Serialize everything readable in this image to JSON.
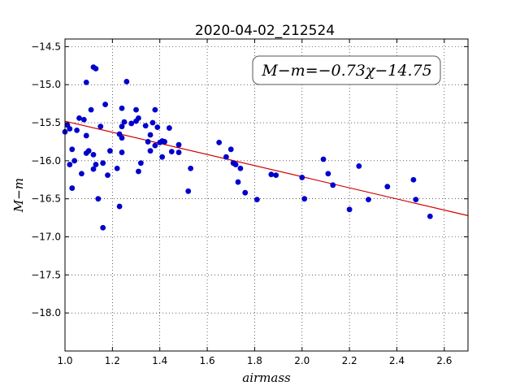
{
  "chart_data": {
    "type": "scatter",
    "title": "2020-04-02_212524",
    "xlabel": "airmass",
    "ylabel": "M−m",
    "annotation": "M−m=−0.73χ−14.75",
    "xlim": [
      1.0,
      2.7
    ],
    "ylim": [
      -18.5,
      -14.4
    ],
    "y_inverted": true,
    "grid": true,
    "xticks": [
      1.0,
      1.2,
      1.4,
      1.6,
      1.8,
      2.0,
      2.2,
      2.4,
      2.6
    ],
    "xtick_labels": [
      "1.0",
      "1.2",
      "1.4",
      "1.6",
      "1.8",
      "2.0",
      "2.2",
      "2.4",
      "2.6"
    ],
    "yticks": [
      -14.5,
      -15.0,
      -15.5,
      -16.0,
      -16.5,
      -17.0,
      -17.5,
      -18.0
    ],
    "ytick_labels": [
      "−14.5",
      "−15.0",
      "−15.5",
      "−16.0",
      "−16.5",
      "−17.0",
      "−17.5",
      "−18.0"
    ],
    "fit": {
      "slope": -0.73,
      "intercept": -14.75,
      "color": "#d00000"
    },
    "marker_color": "#0000cc",
    "points": [
      [
        1.0,
        -15.62
      ],
      [
        1.01,
        -15.53
      ],
      [
        1.02,
        -15.58
      ],
      [
        1.02,
        -16.05
      ],
      [
        1.03,
        -16.36
      ],
      [
        1.03,
        -15.85
      ],
      [
        1.04,
        -16.0
      ],
      [
        1.05,
        -15.6
      ],
      [
        1.06,
        -15.44
      ],
      [
        1.07,
        -16.17
      ],
      [
        1.08,
        -15.46
      ],
      [
        1.09,
        -15.9
      ],
      [
        1.09,
        -15.67
      ],
      [
        1.09,
        -14.97
      ],
      [
        1.1,
        -15.87
      ],
      [
        1.11,
        -15.33
      ],
      [
        1.12,
        -16.11
      ],
      [
        1.12,
        -15.92
      ],
      [
        1.12,
        -14.77
      ],
      [
        1.13,
        -14.79
      ],
      [
        1.13,
        -16.05
      ],
      [
        1.14,
        -16.5
      ],
      [
        1.15,
        -15.55
      ],
      [
        1.16,
        -16.88
      ],
      [
        1.16,
        -16.03
      ],
      [
        1.17,
        -15.26
      ],
      [
        1.18,
        -16.19
      ],
      [
        1.19,
        -15.87
      ],
      [
        1.22,
        -16.1
      ],
      [
        1.23,
        -15.65
      ],
      [
        1.23,
        -16.6
      ],
      [
        1.24,
        -15.7
      ],
      [
        1.24,
        -15.89
      ],
      [
        1.24,
        -15.55
      ],
      [
        1.24,
        -15.31
      ],
      [
        1.25,
        -15.49
      ],
      [
        1.26,
        -14.96
      ],
      [
        1.28,
        -15.51
      ],
      [
        1.3,
        -15.33
      ],
      [
        1.3,
        -15.48
      ],
      [
        1.31,
        -15.44
      ],
      [
        1.31,
        -16.14
      ],
      [
        1.32,
        -16.03
      ],
      [
        1.34,
        -15.54
      ],
      [
        1.35,
        -15.75
      ],
      [
        1.36,
        -15.87
      ],
      [
        1.36,
        -15.66
      ],
      [
        1.37,
        -15.5
      ],
      [
        1.38,
        -15.8
      ],
      [
        1.38,
        -15.33
      ],
      [
        1.39,
        -15.56
      ],
      [
        1.4,
        -15.76
      ],
      [
        1.41,
        -15.95
      ],
      [
        1.41,
        -15.74
      ],
      [
        1.42,
        -15.75
      ],
      [
        1.44,
        -15.57
      ],
      [
        1.45,
        -15.88
      ],
      [
        1.48,
        -15.79
      ],
      [
        1.48,
        -15.89
      ],
      [
        1.52,
        -16.4
      ],
      [
        1.53,
        -16.1
      ],
      [
        1.65,
        -15.76
      ],
      [
        1.68,
        -15.95
      ],
      [
        1.7,
        -15.85
      ],
      [
        1.71,
        -16.03
      ],
      [
        1.72,
        -16.05
      ],
      [
        1.73,
        -16.28
      ],
      [
        1.74,
        -16.1
      ],
      [
        1.76,
        -16.42
      ],
      [
        1.81,
        -16.51
      ],
      [
        1.87,
        -16.18
      ],
      [
        1.89,
        -16.19
      ],
      [
        2.0,
        -16.22
      ],
      [
        2.01,
        -16.5
      ],
      [
        2.09,
        -15.98
      ],
      [
        2.11,
        -16.17
      ],
      [
        2.13,
        -16.32
      ],
      [
        2.2,
        -16.64
      ],
      [
        2.24,
        -16.07
      ],
      [
        2.28,
        -16.51
      ],
      [
        2.36,
        -16.34
      ],
      [
        2.47,
        -16.25
      ],
      [
        2.48,
        -16.51
      ],
      [
        2.54,
        -16.73
      ]
    ]
  }
}
